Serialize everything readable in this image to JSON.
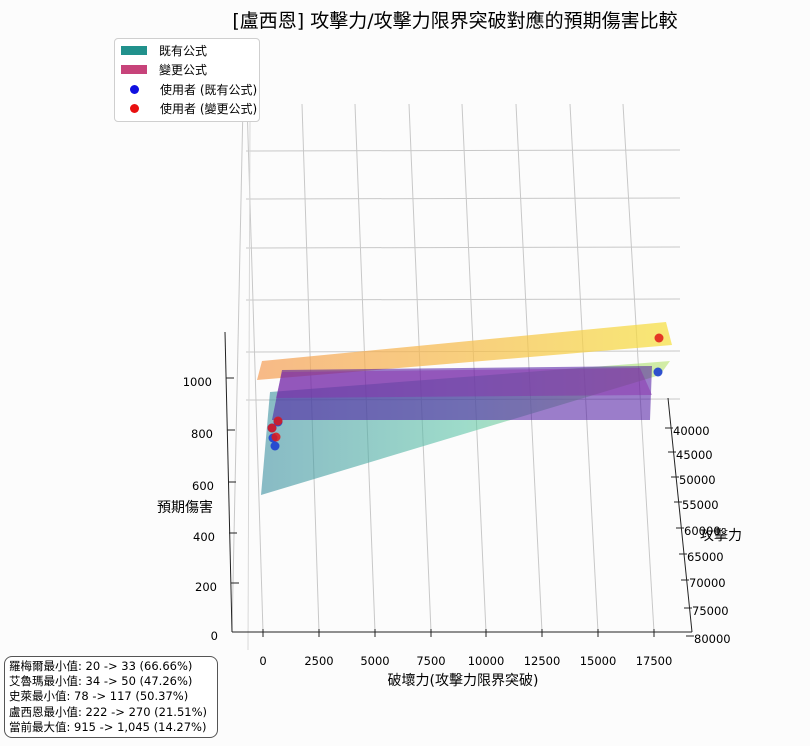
{
  "chart_data": {
    "type": "surface3d",
    "title": "[盧西恩] 攻擊力/攻擊力限界突破對應的預期傷害比較",
    "xlabel": "破壞力(攻擊力限界突破)",
    "ylabel": "攻擊力",
    "zlabel": "預期傷害",
    "x_ticks": [
      "0",
      "2500",
      "5000",
      "7500",
      "10000",
      "12500",
      "15000",
      "17500"
    ],
    "y_ticks": [
      "40000",
      "45000",
      "50000",
      "55000",
      "60000",
      "65000",
      "70000",
      "75000",
      "80000"
    ],
    "z_ticks": [
      "0",
      "200",
      "400",
      "600",
      "800",
      "1000"
    ],
    "series": [
      {
        "name": "既有公式",
        "kind": "surface",
        "color": "#21918c"
      },
      {
        "name": "變更公式",
        "kind": "surface",
        "color": "#c7437a"
      },
      {
        "name": "使用者 (既有公式)",
        "kind": "points",
        "color": "#1010e0"
      },
      {
        "name": "使用者 (變更公式)",
        "kind": "points",
        "color": "#e81010"
      }
    ],
    "legend_position": "top-left",
    "grid": true
  },
  "stats": {
    "lines": [
      "羅梅爾最小值: 20 -> 33 (66.66%)",
      "艾魯瑪最小值: 34 -> 50 (47.26%)",
      "史萊最小值: 78 -> 117 (50.37%)",
      "盧西恩最小值: 222 -> 270 (21.51%)",
      "當前最大值: 915 -> 1,045 (14.27%)"
    ]
  }
}
